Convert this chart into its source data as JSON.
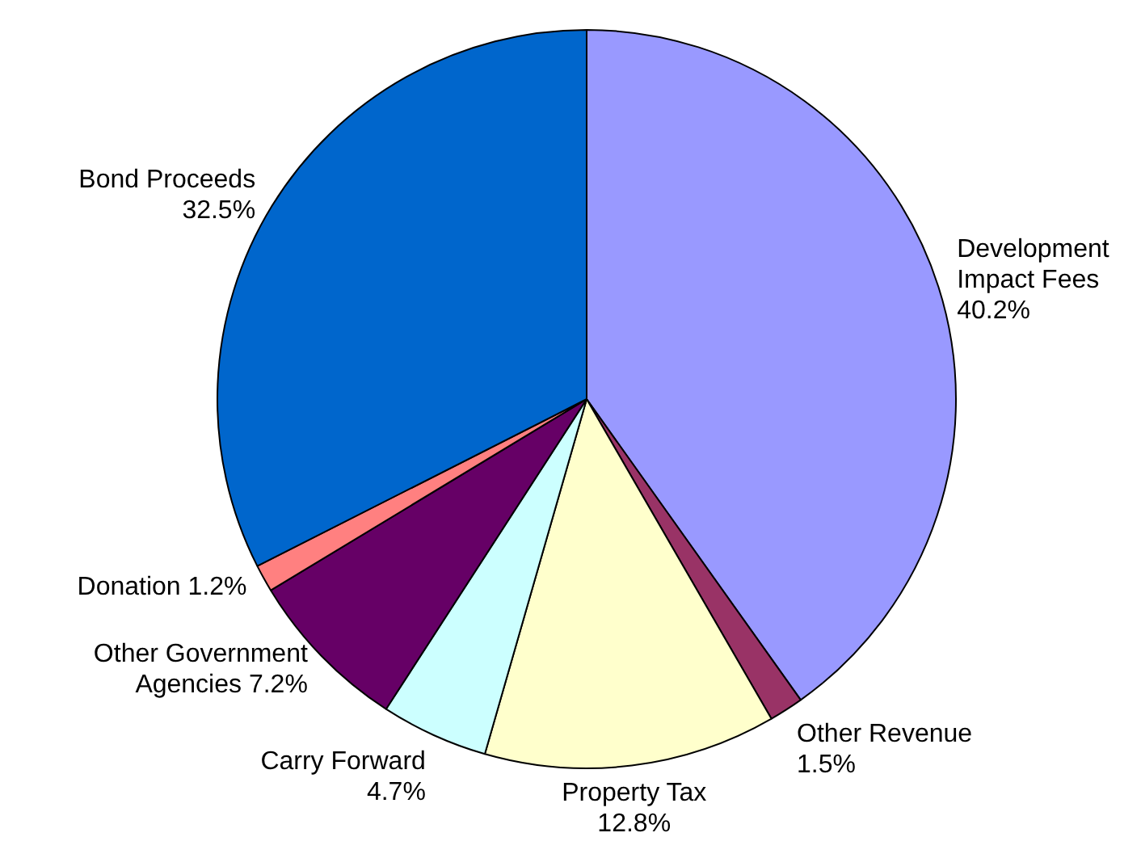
{
  "chart_data": {
    "type": "pie",
    "categories": [
      "Development Impact Fees",
      "Other Revenue",
      "Property Tax",
      "Carry Forward",
      "Other Government Agencies",
      "Donation",
      "Bond Proceeds"
    ],
    "values": [
      40.2,
      1.5,
      12.8,
      4.7,
      7.2,
      1.2,
      32.5
    ],
    "value_labels": [
      "40.2%",
      "1.5%",
      "12.8%",
      "4.7%",
      "7.2%",
      "1.2%",
      "32.5%"
    ],
    "colors": [
      "#9999ff",
      "#993366",
      "#ffffcc",
      "#ccffff",
      "#660066",
      "#ff8080",
      "#0066cc"
    ],
    "legend": false
  }
}
